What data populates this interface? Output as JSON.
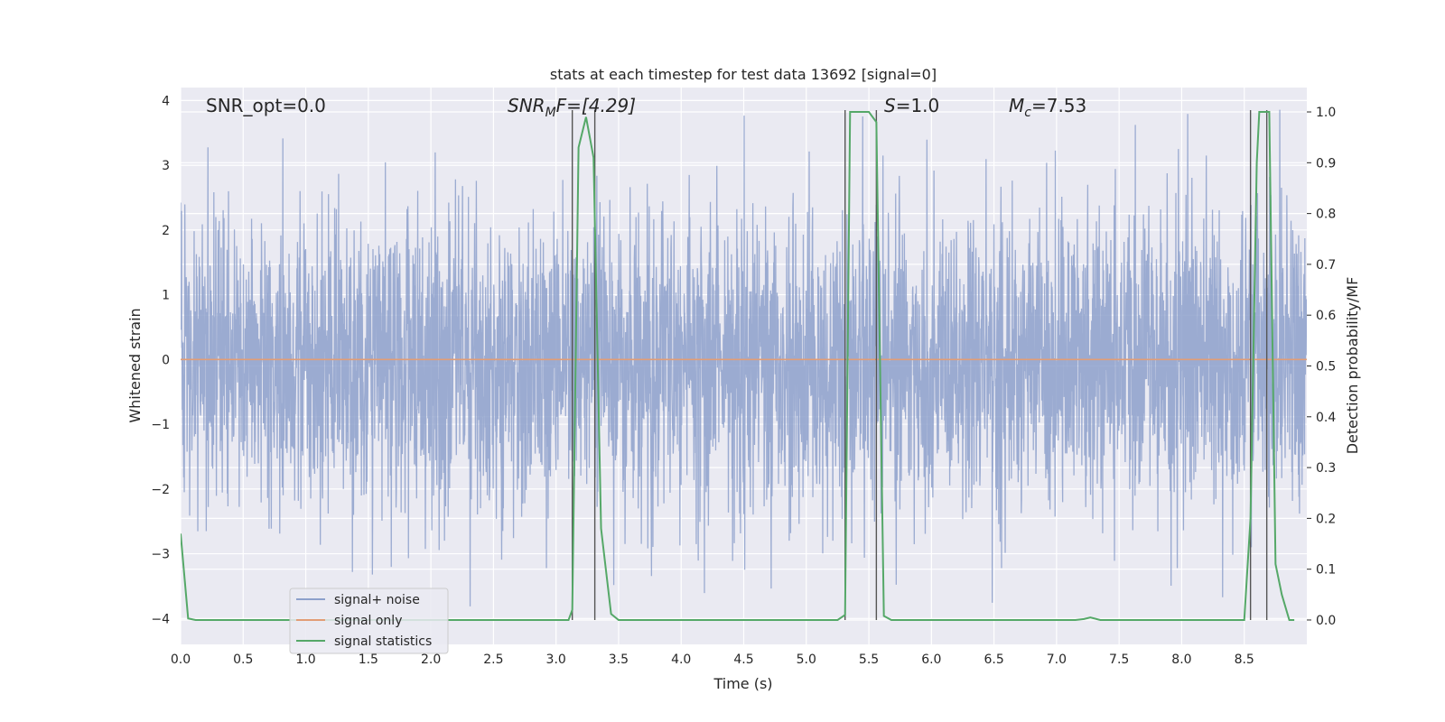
{
  "chart_data": {
    "type": "line",
    "title": "stats at each timestep for test data 13692 [signal=0]",
    "xlabel": "Time (s)",
    "ylabel": "Whitened strain",
    "y2label": "Detection probability/MF",
    "xlim": [
      0,
      9.0
    ],
    "ylim": [
      -4.4,
      4.2
    ],
    "y2lim": [
      -0.048,
      1.048
    ],
    "x_ticks": [
      "0.0",
      "0.5",
      "1.0",
      "1.5",
      "2.0",
      "2.5",
      "3.0",
      "3.5",
      "4.0",
      "4.5",
      "5.0",
      "5.5",
      "6.0",
      "6.5",
      "7.0",
      "7.5",
      "8.0",
      "8.5"
    ],
    "y_ticks": [
      "4",
      "3",
      "2",
      "1",
      "0",
      "−1",
      "−2",
      "−3",
      "−4"
    ],
    "y2_ticks": [
      "1.0",
      "0.9",
      "0.8",
      "0.7",
      "0.6",
      "0.5",
      "0.4",
      "0.3",
      "0.2",
      "0.1",
      "0.0"
    ],
    "grid": true,
    "legend_position": "lower-left",
    "annotations": {
      "snr_opt": "SNR_opt=0.0",
      "snr_mf_main": "SNR",
      "snr_mf_sub": "M",
      "snr_mf_rest": "F=[4.29]",
      "s_main": "S",
      "s_rest": "=1.0",
      "mc_main": "M",
      "mc_sub": "c",
      "mc_rest": "=7.53"
    },
    "vertical_lines_x": [
      3.13,
      3.31,
      5.31,
      5.56,
      8.55,
      8.68
    ],
    "series": [
      {
        "name": "signal+ noise",
        "color": "#8da0cb",
        "envelope": {
          "typical_abs": 1.6,
          "max_abs": 3.9
        },
        "seed": 13692
      },
      {
        "name": "signal only",
        "color": "#e29d76",
        "x": [
          0,
          9.0
        ],
        "y": [
          0,
          0
        ]
      },
      {
        "name": "signal statistics",
        "color": "#55a868",
        "x": [
          0.0,
          0.06,
          0.12,
          3.0,
          3.1,
          3.13,
          3.18,
          3.24,
          3.3,
          3.36,
          3.44,
          3.5,
          5.25,
          5.31,
          5.35,
          5.42,
          5.5,
          5.56,
          5.62,
          5.68,
          7.15,
          7.22,
          7.27,
          7.35,
          8.45,
          8.5,
          8.55,
          8.6,
          8.62,
          8.66,
          8.7,
          8.75,
          8.8,
          8.86,
          8.9
        ],
        "y": [
          0.17,
          0.003,
          0.0,
          0.0,
          0.0,
          0.02,
          0.93,
          0.99,
          0.91,
          0.18,
          0.012,
          0.0,
          0.0,
          0.01,
          1.0,
          1.0,
          1.0,
          0.98,
          0.008,
          0.0,
          0.0,
          0.002,
          0.005,
          0.0,
          0.0,
          0.0,
          0.2,
          0.9,
          1.0,
          1.0,
          1.0,
          0.11,
          0.05,
          0.0,
          0.0
        ]
      }
    ]
  }
}
